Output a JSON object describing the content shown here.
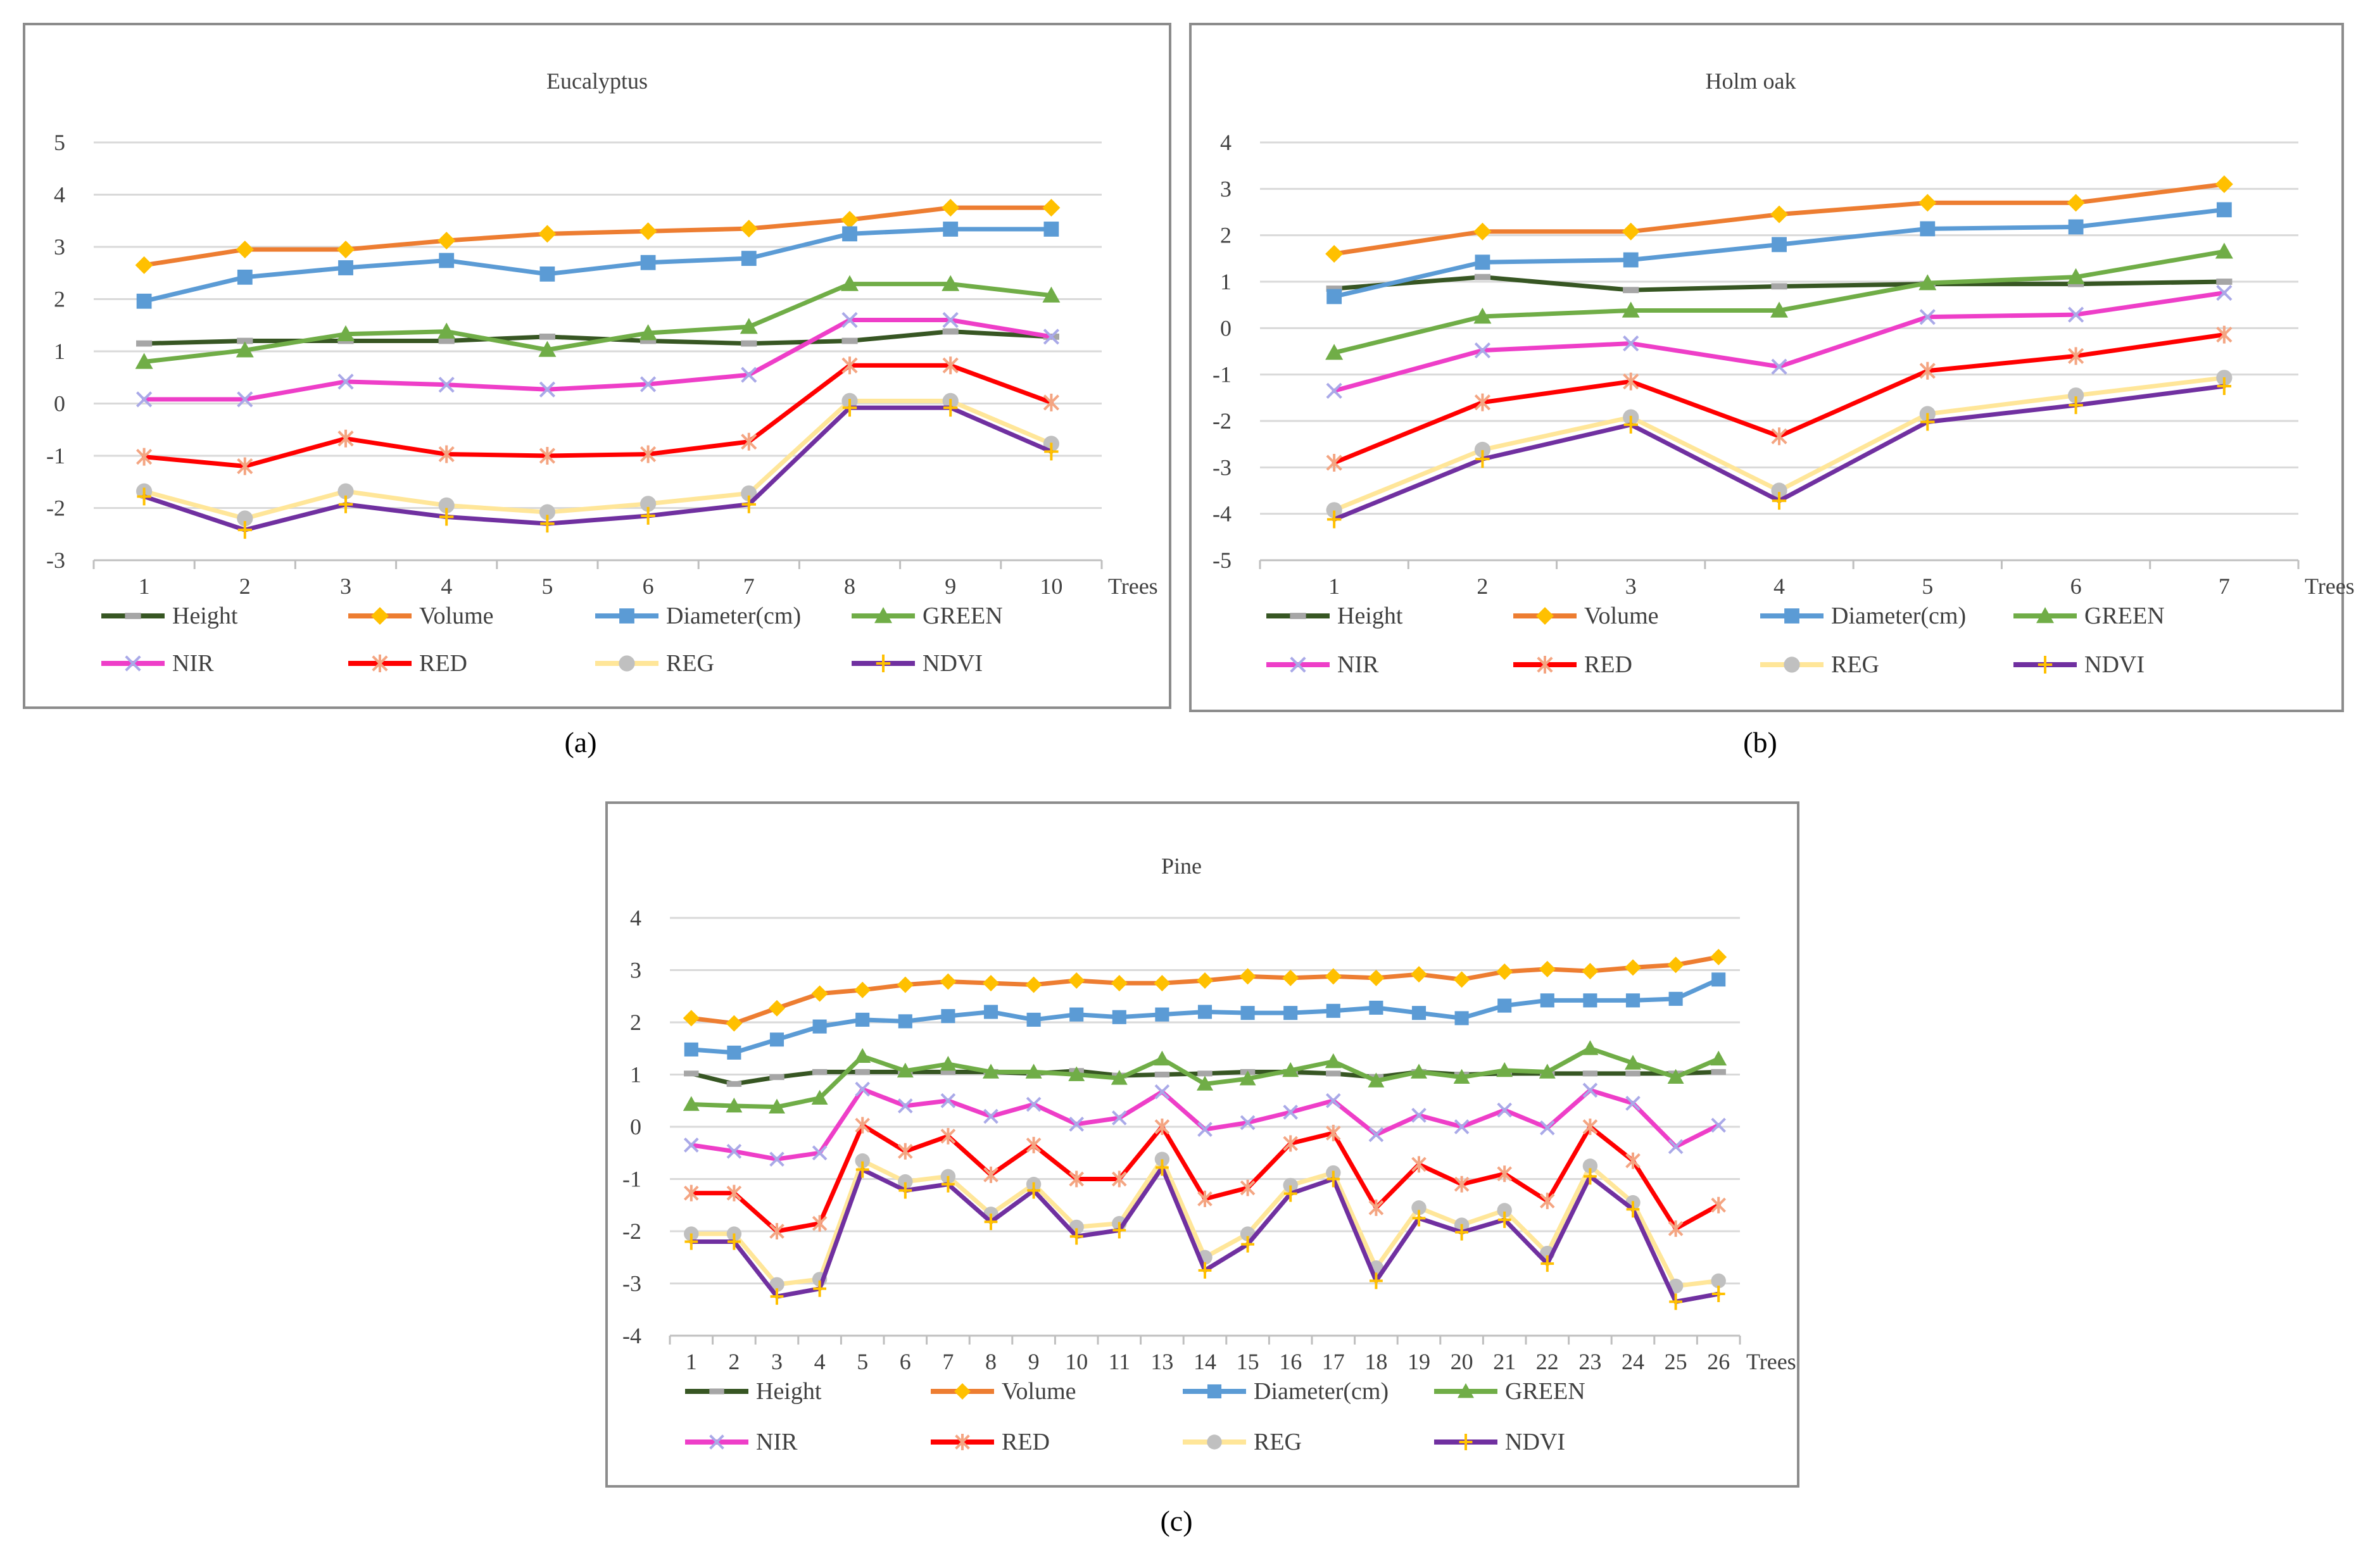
{
  "series_style": [
    {
      "name": "Height",
      "color": "#375623",
      "marker": "dash",
      "marker_color": "#a6a6a6"
    },
    {
      "name": "Volume",
      "color": "#ed7d31",
      "marker": "diamond",
      "marker_color": "#ffc000"
    },
    {
      "name": "Diameter(cm)",
      "color": "#5b9bd5",
      "marker": "square",
      "marker_color": "#5b9bd5"
    },
    {
      "name": "GREEN",
      "color": "#70ad47",
      "marker": "triangle",
      "marker_color": "#70ad47"
    },
    {
      "name": "NIR",
      "color": "#ee3ec8",
      "marker": "x",
      "marker_color": "#a9a9e8"
    },
    {
      "name": "RED",
      "color": "#ff0000",
      "marker": "star",
      "marker_color": "#f4a582"
    },
    {
      "name": "REG",
      "color": "#ffe699",
      "marker": "circle",
      "marker_color": "#c0c0c0"
    },
    {
      "name": "NDVI",
      "color": "#7030a0",
      "marker": "plus",
      "marker_color": "#ffc000"
    }
  ],
  "chart_data": [
    {
      "type": "line",
      "title": "Eucalyptus",
      "caption": "(a)",
      "xlabel": "Trees",
      "categories": [
        "1",
        "2",
        "3",
        "4",
        "5",
        "6",
        "7",
        "8",
        "9",
        "10"
      ],
      "ylim": [
        -3,
        5
      ],
      "yticks": [
        -3,
        -2,
        -1,
        0,
        1,
        2,
        3,
        4,
        5
      ],
      "series": [
        {
          "name": "Height",
          "values": [
            1.15,
            1.2,
            1.2,
            1.2,
            1.28,
            1.2,
            1.15,
            1.2,
            1.38,
            1.28
          ]
        },
        {
          "name": "Volume",
          "values": [
            2.65,
            2.95,
            2.95,
            3.12,
            3.25,
            3.3,
            3.35,
            3.52,
            3.75,
            3.75
          ]
        },
        {
          "name": "Diameter(cm)",
          "values": [
            1.96,
            2.42,
            2.6,
            2.74,
            2.48,
            2.7,
            2.78,
            3.25,
            3.34,
            3.34
          ]
        },
        {
          "name": "GREEN",
          "values": [
            0.8,
            1.02,
            1.33,
            1.38,
            1.03,
            1.35,
            1.47,
            2.29,
            2.29,
            2.07
          ]
        },
        {
          "name": "NIR",
          "values": [
            0.08,
            0.08,
            0.42,
            0.36,
            0.27,
            0.37,
            0.55,
            1.6,
            1.6,
            1.28
          ]
        },
        {
          "name": "RED",
          "values": [
            -1.02,
            -1.2,
            -0.67,
            -0.97,
            -1.0,
            -0.97,
            -0.73,
            0.73,
            0.73,
            0.02
          ]
        },
        {
          "name": "REG",
          "values": [
            -1.68,
            -2.2,
            -1.68,
            -1.95,
            -2.08,
            -1.92,
            -1.72,
            0.05,
            0.05,
            -0.77
          ]
        },
        {
          "name": "NDVI",
          "values": [
            -1.78,
            -2.42,
            -1.93,
            -2.17,
            -2.3,
            -2.15,
            -1.93,
            -0.08,
            -0.08,
            -0.92
          ]
        }
      ]
    },
    {
      "type": "line",
      "title": "Holm oak",
      "caption": "(b)",
      "xlabel": "Trees",
      "categories": [
        "1",
        "2",
        "3",
        "4",
        "5",
        "6",
        "7"
      ],
      "ylim": [
        -5,
        4
      ],
      "yticks": [
        -5,
        -4,
        -3,
        -2,
        -1,
        0,
        1,
        2,
        3,
        4
      ],
      "series": [
        {
          "name": "Height",
          "values": [
            0.85,
            1.1,
            0.82,
            0.9,
            0.95,
            0.95,
            1.0
          ]
        },
        {
          "name": "Volume",
          "values": [
            1.6,
            2.08,
            2.08,
            2.45,
            2.7,
            2.7,
            3.1
          ]
        },
        {
          "name": "Diameter(cm)",
          "values": [
            0.68,
            1.42,
            1.47,
            1.8,
            2.14,
            2.18,
            2.55
          ]
        },
        {
          "name": "GREEN",
          "values": [
            -0.53,
            0.25,
            0.38,
            0.38,
            0.97,
            1.1,
            1.65
          ]
        },
        {
          "name": "NIR",
          "values": [
            -1.35,
            -0.48,
            -0.33,
            -0.83,
            0.24,
            0.29,
            0.76
          ]
        },
        {
          "name": "RED",
          "values": [
            -2.9,
            -1.6,
            -1.15,
            -2.33,
            -0.92,
            -0.6,
            -0.14
          ]
        },
        {
          "name": "REG",
          "values": [
            -3.92,
            -2.62,
            -1.92,
            -3.5,
            -1.85,
            -1.45,
            -1.07
          ]
        },
        {
          "name": "NDVI",
          "values": [
            -4.12,
            -2.82,
            -2.08,
            -3.72,
            -2.02,
            -1.66,
            -1.25
          ]
        }
      ]
    },
    {
      "type": "line",
      "title": "Pine",
      "caption": "(c)",
      "xlabel": "Trees",
      "categories": [
        "1",
        "2",
        "3",
        "4",
        "5",
        "6",
        "7",
        "8",
        "9",
        "10",
        "11",
        "13",
        "14",
        "15",
        "16",
        "17",
        "18",
        "19",
        "20",
        "21",
        "22",
        "23",
        "24",
        "25",
        "26"
      ],
      "ylim": [
        -4,
        4
      ],
      "yticks": [
        -4,
        -3,
        -2,
        -1,
        0,
        1,
        2,
        3,
        4
      ],
      "series": [
        {
          "name": "Height",
          "values": [
            1.02,
            0.82,
            0.95,
            1.05,
            1.05,
            1.05,
            1.05,
            1.05,
            1.02,
            1.07,
            0.98,
            1.0,
            1.02,
            1.05,
            1.05,
            1.02,
            0.95,
            1.05,
            1.0,
            1.02,
            1.02,
            1.02,
            1.02,
            1.02,
            1.05
          ]
        },
        {
          "name": "Volume",
          "values": [
            2.08,
            1.98,
            2.27,
            2.55,
            2.62,
            2.72,
            2.78,
            2.75,
            2.72,
            2.8,
            2.75,
            2.75,
            2.8,
            2.88,
            2.85,
            2.88,
            2.85,
            2.92,
            2.82,
            2.97,
            3.02,
            2.98,
            3.05,
            3.1,
            3.25
          ]
        },
        {
          "name": "Diameter(cm)",
          "values": [
            1.48,
            1.42,
            1.67,
            1.92,
            2.05,
            2.02,
            2.12,
            2.2,
            2.05,
            2.15,
            2.1,
            2.15,
            2.2,
            2.18,
            2.18,
            2.22,
            2.28,
            2.18,
            2.08,
            2.32,
            2.42,
            2.42,
            2.42,
            2.45,
            2.82
          ]
        },
        {
          "name": "GREEN",
          "values": [
            0.43,
            0.4,
            0.38,
            0.55,
            1.35,
            1.07,
            1.2,
            1.05,
            1.05,
            1.0,
            0.93,
            1.3,
            0.82,
            0.92,
            1.08,
            1.25,
            0.88,
            1.05,
            0.95,
            1.08,
            1.05,
            1.5,
            1.22,
            0.95,
            1.3
          ]
        },
        {
          "name": "NIR",
          "values": [
            -0.35,
            -0.47,
            -0.62,
            -0.5,
            0.72,
            0.4,
            0.5,
            0.2,
            0.43,
            0.05,
            0.17,
            0.67,
            -0.05,
            0.08,
            0.28,
            0.5,
            -0.15,
            0.22,
            0.0,
            0.32,
            -0.02,
            0.7,
            0.45,
            -0.38,
            0.03
          ]
        },
        {
          "name": "RED",
          "values": [
            -1.27,
            -1.27,
            -2.0,
            -1.85,
            0.03,
            -0.47,
            -0.18,
            -0.92,
            -0.35,
            -1.0,
            -1.0,
            0.0,
            -1.38,
            -1.17,
            -0.32,
            -0.12,
            -1.55,
            -0.72,
            -1.1,
            -0.9,
            -1.42,
            0.0,
            -0.65,
            -1.95,
            -1.5
          ]
        },
        {
          "name": "REG",
          "values": [
            -2.05,
            -2.05,
            -3.02,
            -2.92,
            -0.65,
            -1.05,
            -0.95,
            -1.67,
            -1.1,
            -1.92,
            -1.85,
            -0.62,
            -2.5,
            -2.05,
            -1.12,
            -0.88,
            -2.7,
            -1.55,
            -1.88,
            -1.6,
            -2.42,
            -0.75,
            -1.45,
            -3.05,
            -2.95
          ]
        },
        {
          "name": "NDVI",
          "values": [
            -2.2,
            -2.2,
            -3.25,
            -3.1,
            -0.82,
            -1.22,
            -1.1,
            -1.82,
            -1.22,
            -2.1,
            -1.98,
            -0.78,
            -2.75,
            -2.25,
            -1.28,
            -1.0,
            -2.95,
            -1.75,
            -2.02,
            -1.78,
            -2.62,
            -0.95,
            -1.58,
            -3.35,
            -3.2
          ]
        }
      ]
    }
  ]
}
